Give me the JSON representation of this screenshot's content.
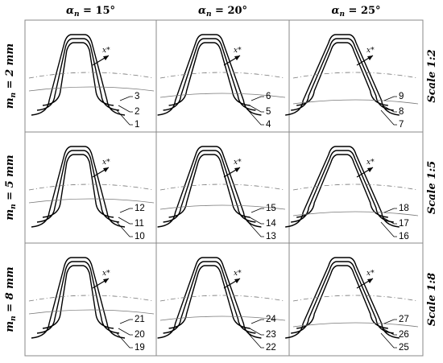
{
  "columns": [
    {
      "label": "α",
      "sub": "n",
      "eq": " = 15°",
      "angle": 15
    },
    {
      "label": "α",
      "sub": "n",
      "eq": " = 20°",
      "angle": 20
    },
    {
      "label": "α",
      "sub": "n",
      "eq": " = 25°",
      "angle": 25
    }
  ],
  "rows": [
    {
      "label": "m",
      "sub": "n",
      "eq": " = 2 mm",
      "scale": "Scale 1:2",
      "ids": [
        [
          "3",
          "2",
          "1"
        ],
        [
          "6",
          "5",
          "4"
        ],
        [
          "9",
          "8",
          "7"
        ]
      ]
    },
    {
      "label": "m",
      "sub": "n",
      "eq": " = 5 mm",
      "scale": "Scale 1:5",
      "ids": [
        [
          "12",
          "11",
          "10"
        ],
        [
          "15",
          "14",
          "13"
        ],
        [
          "18",
          "17",
          "16"
        ]
      ]
    },
    {
      "label": "m",
      "sub": "n",
      "eq": " = 8 mm",
      "scale": "Scale 1:8",
      "ids": [
        [
          "21",
          "20",
          "19"
        ],
        [
          "24",
          "23",
          "22"
        ],
        [
          "27",
          "26",
          "25"
        ]
      ]
    }
  ],
  "profile_shift_label": "x*",
  "colors": {
    "line": "#000000",
    "grid": "#888888",
    "aux": "#777777"
  }
}
